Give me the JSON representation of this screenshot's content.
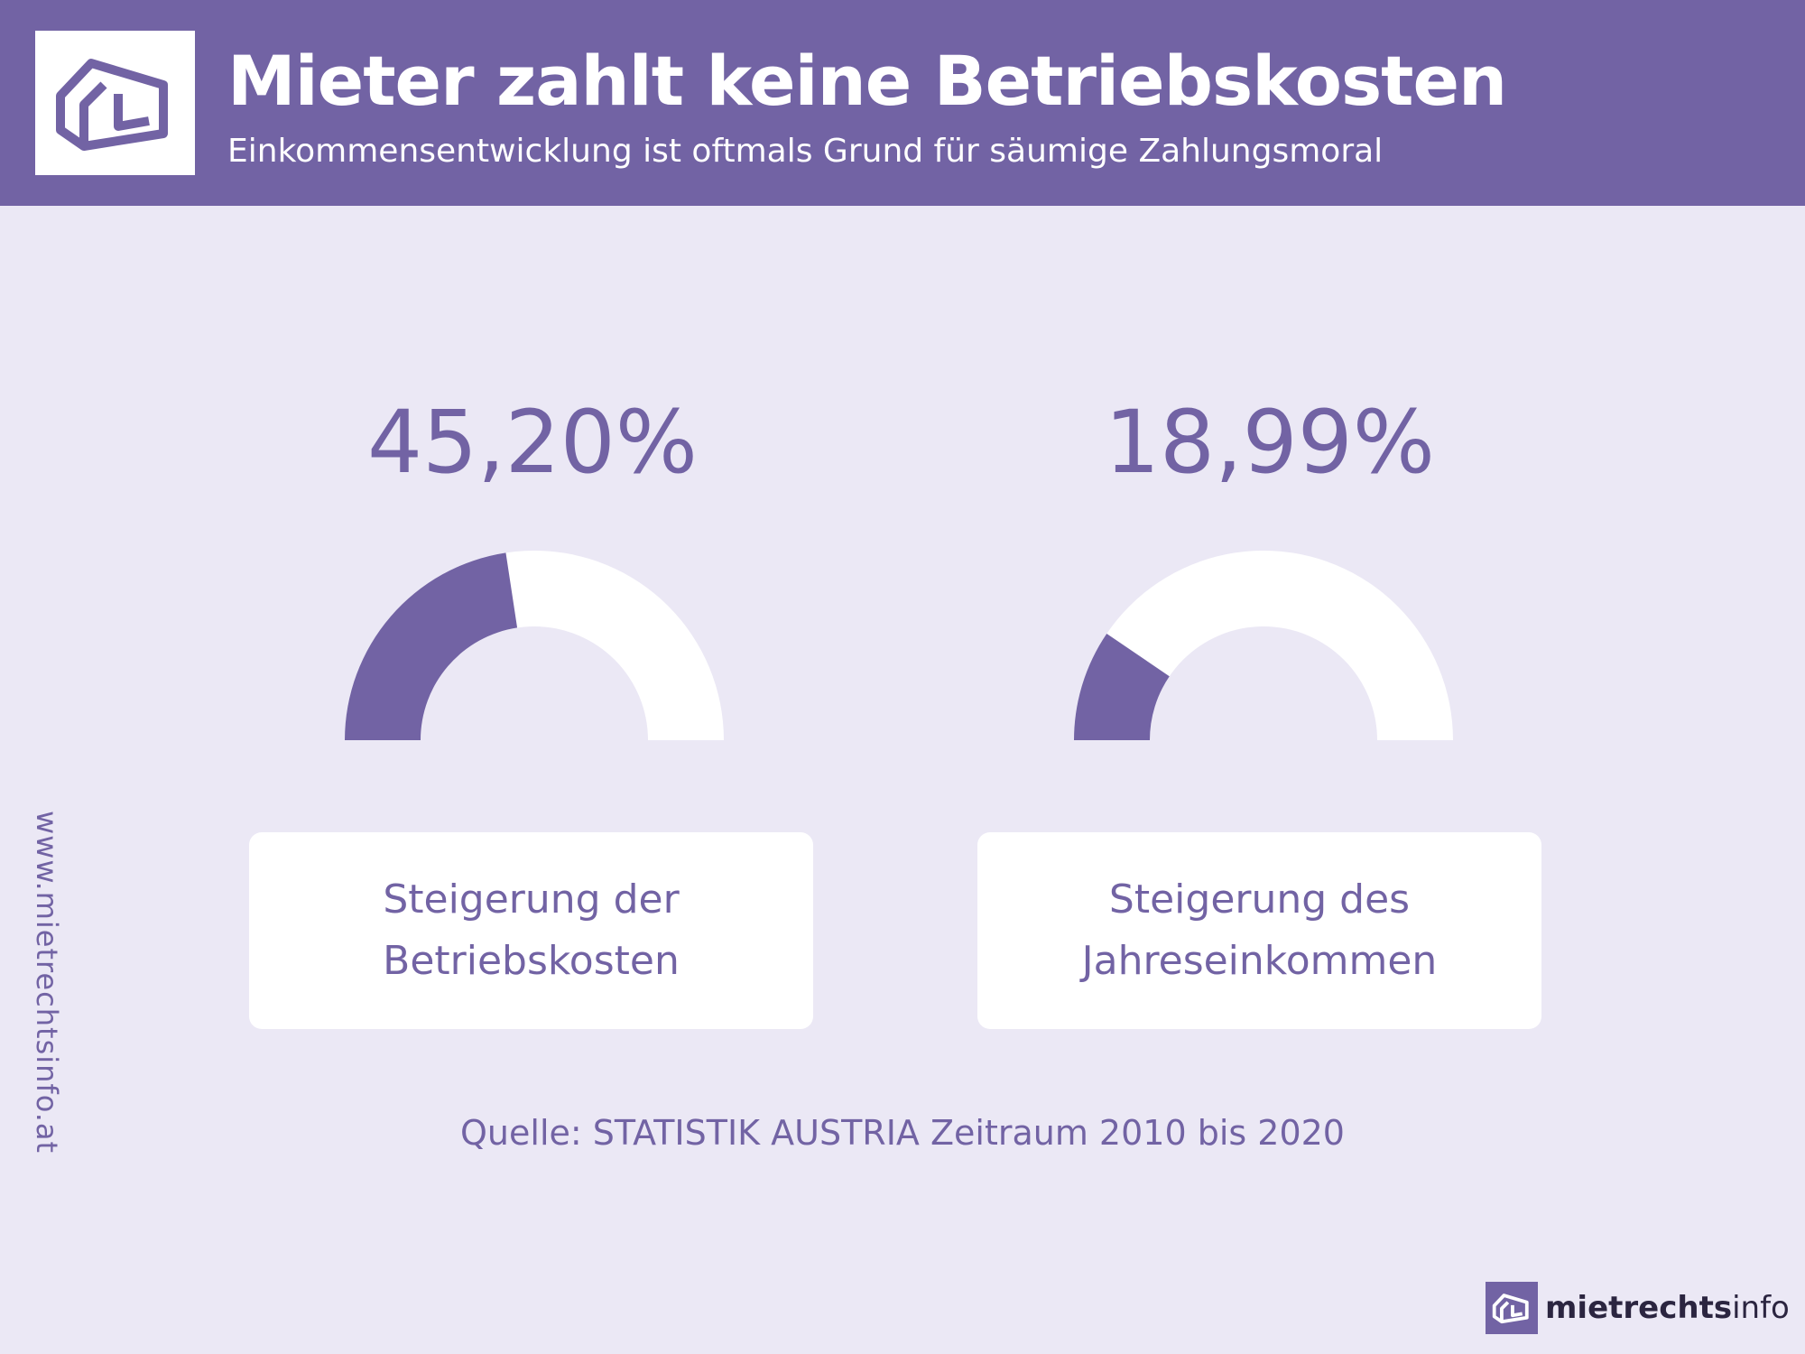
{
  "header": {
    "title": "Mieter zahlt keine Betriebskosten",
    "subtitle": "Einkommensentwicklung ist oftmals Grund für säumige Zahlungsmoral"
  },
  "chart_data": {
    "type": "gauge",
    "title": "Mieter zahlt keine Betriebskosten",
    "max": 100,
    "series": [
      {
        "name": "Steigerung der Betriebskosten",
        "value": 45.2,
        "display": "45,20%",
        "label": "Steigerung der\nBetriebskosten"
      },
      {
        "name": "Steigerung des Jahreseinkommen",
        "value": 18.99,
        "display": "18,99%",
        "label": "Steigerung des\nJahreseinkommen"
      }
    ]
  },
  "source": "Quelle: STATISTIK AUSTRIA Zeitraum 2010 bis 2020",
  "side_url": "www.mietrechtsinfo.at",
  "brand": {
    "bold": "mietrechts",
    "light": "info"
  },
  "colors": {
    "accent": "#7263a4",
    "background": "#ebe8f5",
    "track": "#ffffff"
  }
}
